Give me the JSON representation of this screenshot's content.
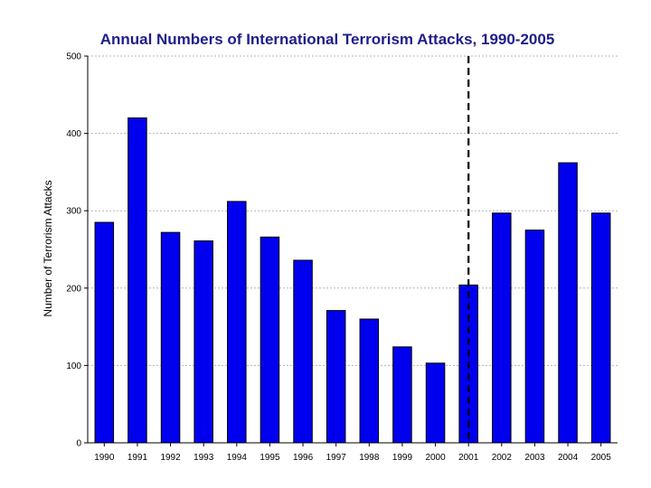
{
  "chart_data": {
    "type": "bar",
    "title": "Annual Numbers of International Terrorism Attacks, 1990-2005",
    "xlabel": "",
    "ylabel": "Number of Terrorism Attacks",
    "ylim": [
      0,
      500
    ],
    "yticks": [
      0,
      100,
      200,
      300,
      400,
      500
    ],
    "grid": true,
    "categories": [
      "1990",
      "1991",
      "1992",
      "1993",
      "1994",
      "1995",
      "1996",
      "1997",
      "1998",
      "1999",
      "2000",
      "2001",
      "2002",
      "2003",
      "2004",
      "2005"
    ],
    "values": [
      285,
      420,
      272,
      261,
      312,
      266,
      236,
      171,
      160,
      124,
      103,
      204,
      297,
      275,
      362,
      297
    ],
    "annotation_line_category": "2001",
    "colors": {
      "bar": "#0000ee",
      "bar_stroke": "#000000",
      "title": "#1e1e8c",
      "grid": "#b4b4b4",
      "axis": "#000000",
      "marker_line": "#000000"
    }
  }
}
